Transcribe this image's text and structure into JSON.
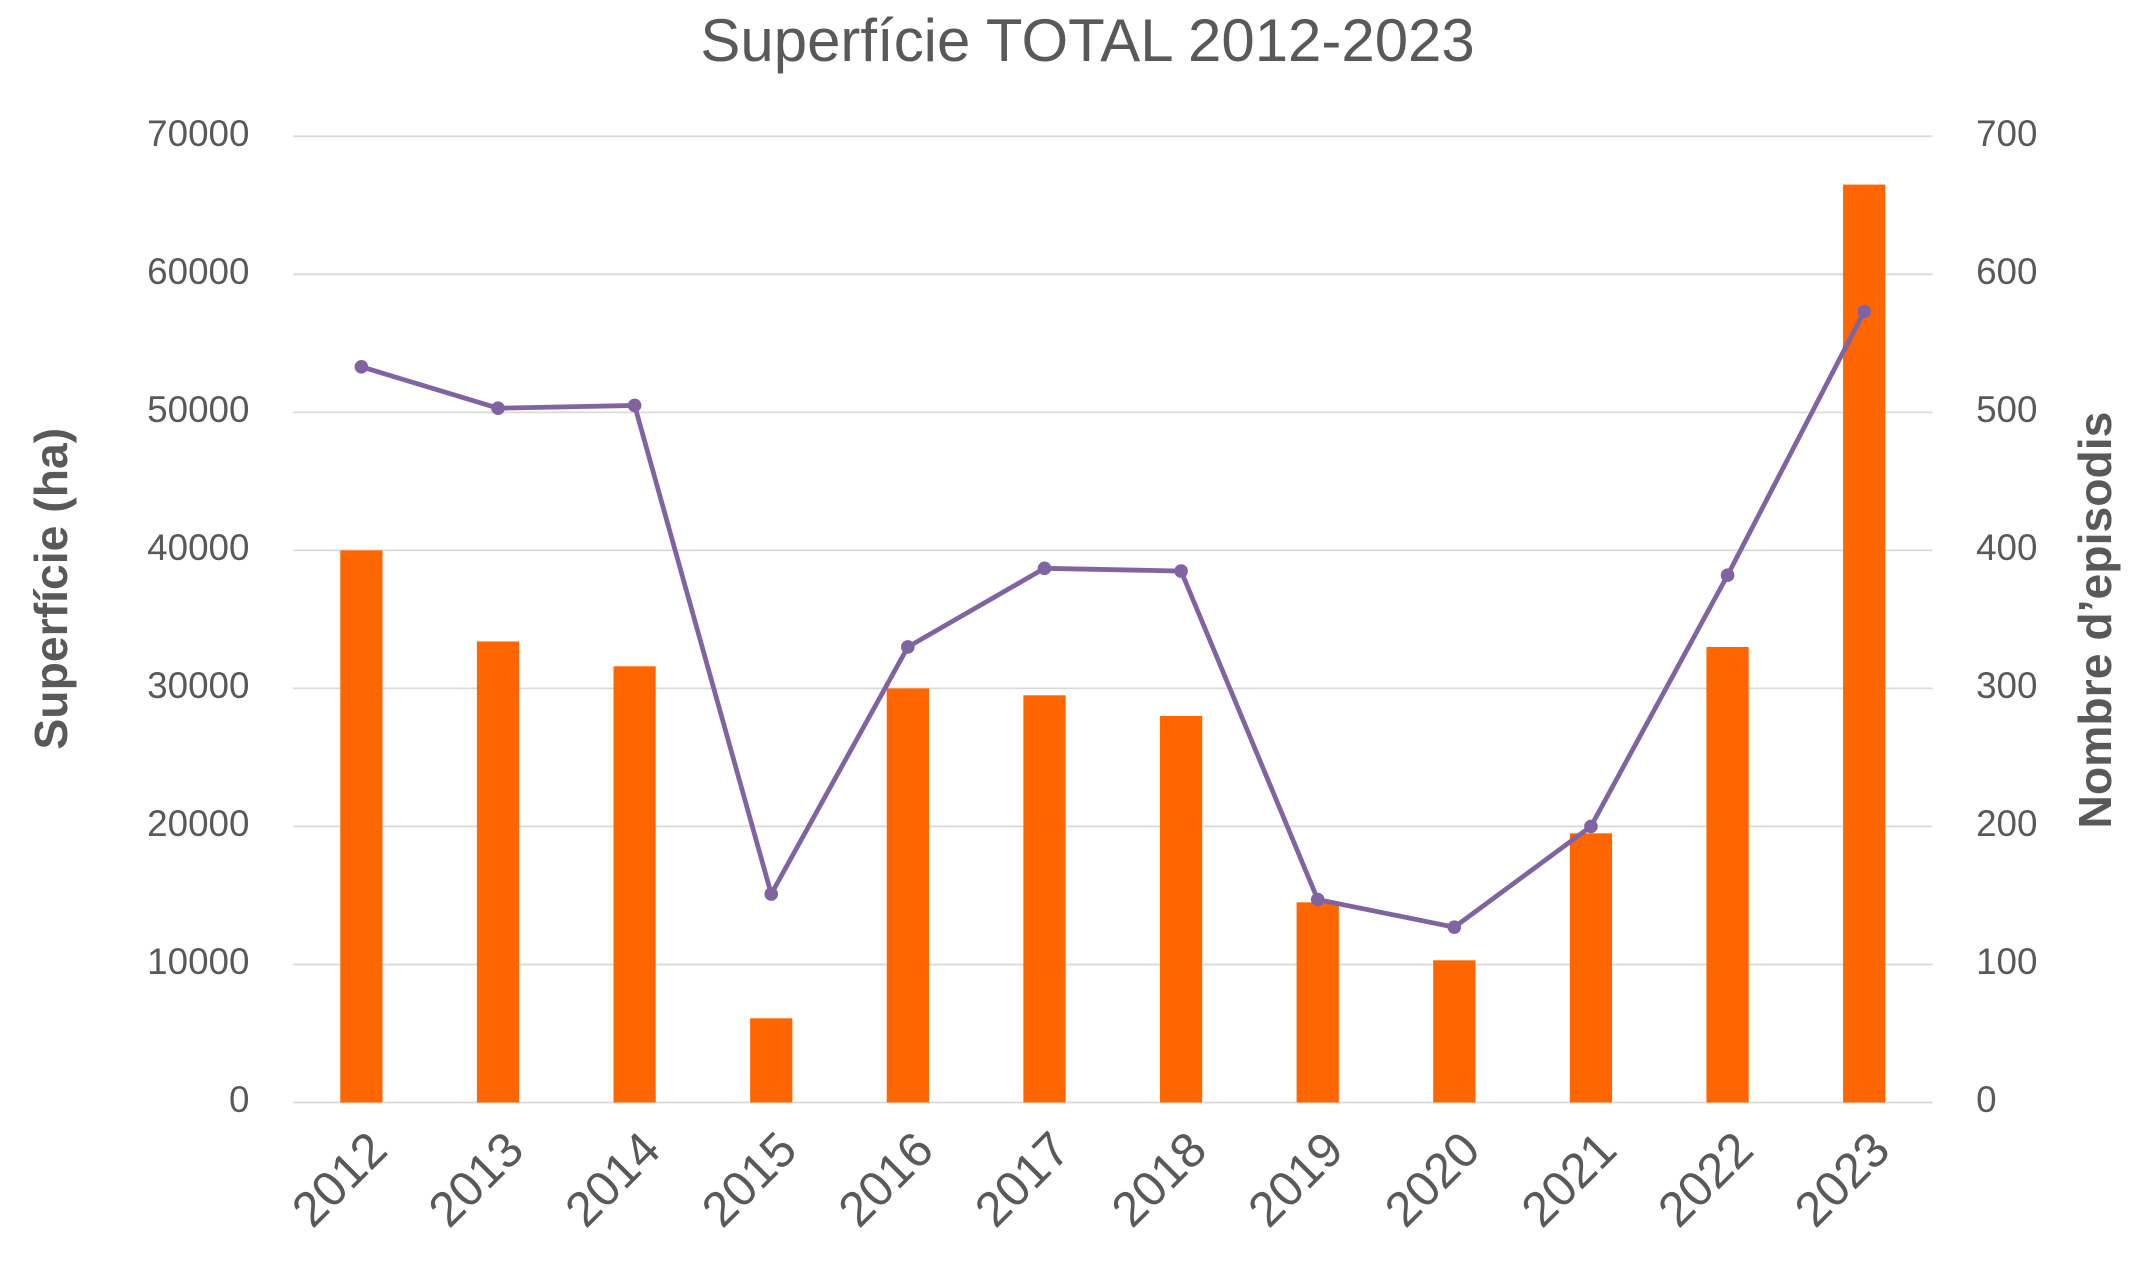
{
  "chart_data": {
    "type": "bar-line",
    "title": "Superfície TOTAL 2012-2023",
    "y_label": "Superfície (ha)",
    "y2_label": "Nombre d’episodis",
    "categories": [
      "2012",
      "2013",
      "2014",
      "2015",
      "2016",
      "2017",
      "2018",
      "2019",
      "2020",
      "2021",
      "2022",
      "2023"
    ],
    "series": [
      {
        "type": "bar",
        "color": "#ff6600",
        "values": [
          40000,
          33400,
          31600,
          6100,
          30000,
          29500,
          28000,
          14500,
          10300,
          19500,
          33000,
          66500
        ]
      },
      {
        "type": "line",
        "axis": "y2",
        "color": "#8064a2",
        "values": [
          533,
          503,
          505,
          151,
          330,
          387,
          385,
          147,
          127,
          200,
          382,
          573
        ]
      }
    ],
    "ylim": [
      0,
      70000
    ],
    "yticks": [
      0,
      10000,
      20000,
      30000,
      40000,
      50000,
      60000,
      70000
    ],
    "y2lim": [
      0,
      700
    ],
    "y2ticks": [
      0,
      100,
      200,
      300,
      400,
      500,
      600,
      700
    ],
    "grid": true
  }
}
